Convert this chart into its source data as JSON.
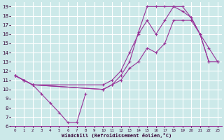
{
  "xlabel": "Windchill (Refroidissement éolien,°C)",
  "background_color": "#cce9e9",
  "grid_color": "#ffffff",
  "line_color": "#993399",
  "xlim": [
    -0.5,
    23.5
  ],
  "ylim": [
    6,
    19.5
  ],
  "xticks": [
    0,
    1,
    2,
    3,
    4,
    5,
    6,
    7,
    8,
    9,
    10,
    11,
    12,
    13,
    14,
    15,
    16,
    17,
    18,
    19,
    20,
    21,
    22,
    23
  ],
  "yticks": [
    6,
    7,
    8,
    9,
    10,
    11,
    12,
    13,
    14,
    15,
    16,
    17,
    18,
    19
  ],
  "curves": [
    {
      "x": [
        0,
        1,
        2,
        3,
        4,
        5,
        6,
        7,
        8
      ],
      "y": [
        11.5,
        11.0,
        10.5,
        9.5,
        8.5,
        7.5,
        6.4,
        6.4,
        9.5
      ]
    },
    {
      "x": [
        0,
        1,
        2,
        10,
        11,
        12,
        13,
        14,
        15,
        16,
        17,
        18,
        19,
        20,
        21,
        22,
        23
      ],
      "y": [
        11.5,
        11.0,
        10.5,
        10.0,
        10.5,
        11.5,
        13.0,
        16.2,
        19.0,
        19.0,
        19.0,
        19.0,
        18.5,
        17.8,
        16.0,
        14.5,
        13.0
      ]
    },
    {
      "x": [
        0,
        1,
        2,
        10,
        11,
        12,
        13,
        14,
        15,
        16,
        17,
        18,
        19,
        20,
        21,
        22,
        23
      ],
      "y": [
        11.5,
        11.0,
        10.5,
        10.5,
        11.0,
        12.0,
        14.0,
        16.0,
        17.5,
        16.0,
        17.5,
        19.0,
        19.0,
        17.8,
        16.0,
        13.0,
        13.0
      ]
    },
    {
      "x": [
        0,
        1,
        2,
        10,
        11,
        12,
        13,
        14,
        15,
        16,
        17,
        18,
        19,
        20,
        21,
        22,
        23
      ],
      "y": [
        11.5,
        11.0,
        10.5,
        10.0,
        10.5,
        11.0,
        12.3,
        13.0,
        14.5,
        14.0,
        15.0,
        17.5,
        17.5,
        17.5,
        16.0,
        13.0,
        13.0
      ]
    }
  ]
}
